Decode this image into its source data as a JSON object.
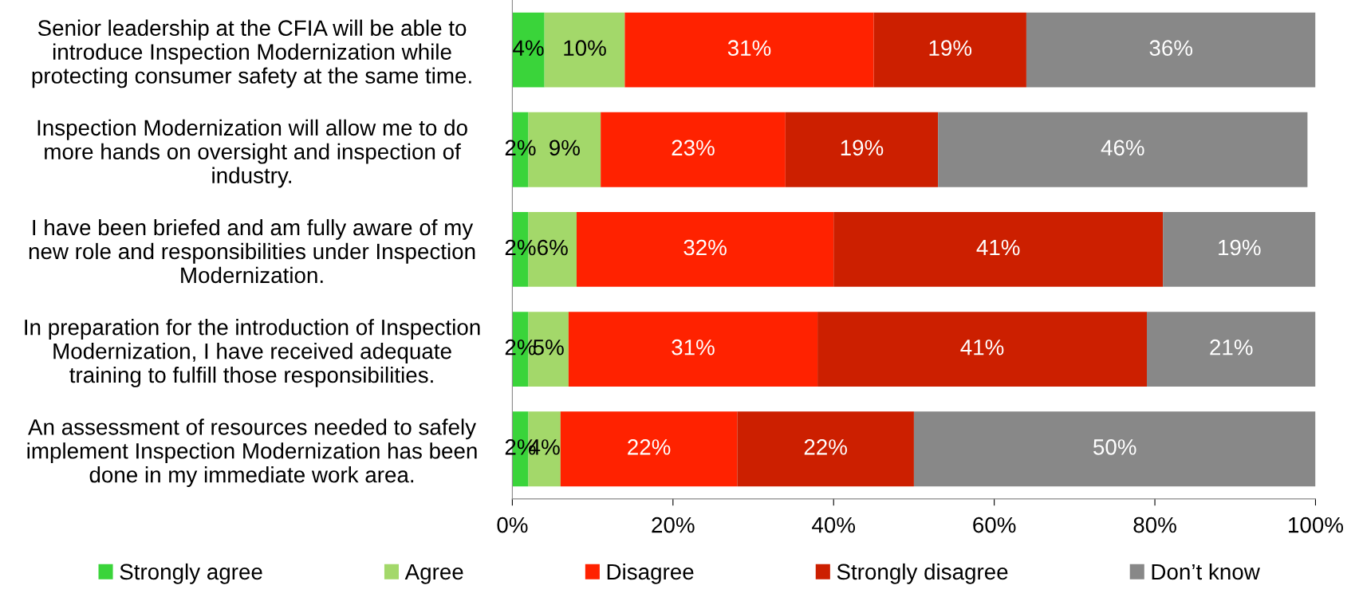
{
  "chart_data": {
    "type": "bar",
    "orientation": "horizontal",
    "stacked": true,
    "categories": [
      "Senior leadership at the CFIA will be able to\nintroduce Inspection Modernization while\nprotecting consumer safety at the same time.",
      "Inspection Modernization will allow me to do\nmore hands on oversight and inspection of\nindustry.",
      "I have been briefed and am fully aware of my\nnew role and responsibilities under Inspection\nModernization.",
      "In preparation for the introduction of Inspection\nModernization, I have received adequate\ntraining to fulfill those responsibilities.",
      "An assessment of resources needed to safely\nimplement Inspection Modernization has been\ndone in my immediate work area."
    ],
    "series": [
      {
        "name": "Strongly agree",
        "color": "#3ad43a",
        "values": [
          4,
          2,
          2,
          2,
          2
        ],
        "value_labels": [
          "4%",
          "2%",
          "2%",
          "2%",
          "2%"
        ]
      },
      {
        "name": "Agree",
        "color": "#a3d86a",
        "values": [
          10,
          9,
          6,
          5,
          4
        ],
        "value_labels": [
          "10%",
          "9%",
          "6%",
          "5%",
          "4%"
        ]
      },
      {
        "name": "Disagree",
        "color": "#ff2200",
        "values": [
          31,
          23,
          32,
          31,
          22
        ],
        "value_labels": [
          "31%",
          "23%",
          "32%",
          "31%",
          "22%"
        ]
      },
      {
        "name": "Strongly disagree",
        "color": "#cc1f00",
        "values": [
          19,
          19,
          41,
          41,
          22
        ],
        "value_labels": [
          "19%",
          "19%",
          "41%",
          "41%",
          "22%"
        ]
      },
      {
        "name": "Don’t know",
        "color": "#888888",
        "values": [
          36,
          46,
          19,
          21,
          50
        ],
        "value_labels": [
          "36%",
          "46%",
          "19%",
          "21%",
          "50%"
        ]
      }
    ],
    "xlim": [
      0,
      100
    ],
    "xticks": [
      {
        "value": 0,
        "label": "0%"
      },
      {
        "value": 20,
        "label": "20%"
      },
      {
        "value": 40,
        "label": "40%"
      },
      {
        "value": 60,
        "label": "60%"
      },
      {
        "value": 80,
        "label": "80%"
      },
      {
        "value": 100,
        "label": "100%"
      }
    ],
    "grid": false,
    "legend": "bottom"
  }
}
